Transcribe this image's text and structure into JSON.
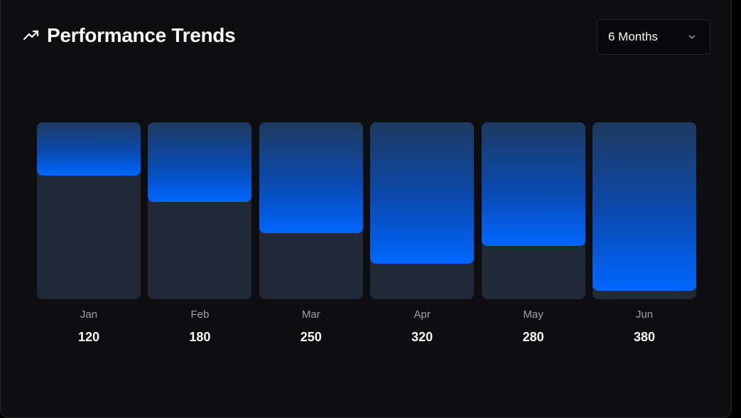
{
  "header": {
    "title": "Performance Trends",
    "icon": "trending-up-icon"
  },
  "range_select": {
    "value": "6 Months",
    "icon": "chevron-down-icon"
  },
  "colors": {
    "background": "#0e0e10",
    "track": "#1f2937",
    "bar_top": "#1e3a5f",
    "bar_bottom": "#0066ff",
    "text": "#fafafa",
    "muted": "#a1a1aa"
  },
  "chart_data": {
    "type": "bar",
    "categories": [
      "Jan",
      "Feb",
      "Mar",
      "Apr",
      "May",
      "Jun"
    ],
    "values": [
      120,
      180,
      250,
      320,
      280,
      380
    ],
    "value_labels": [
      "120",
      "180",
      "250",
      "320",
      "280",
      "380"
    ],
    "ylim": [
      0,
      400
    ],
    "grid": false,
    "legend": "none"
  }
}
